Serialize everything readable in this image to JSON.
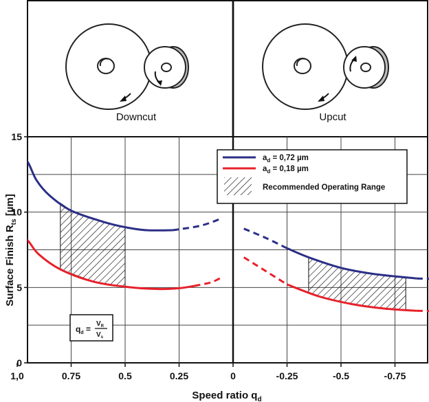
{
  "chart_data": {
    "type": "line",
    "xlabel": "Speed ratio q",
    "xlabel_sub": "d",
    "ylabel": "Surface Finish R",
    "ylabel_sub": "ts",
    "ylabel_unit": " [µm]",
    "ylim": [
      0,
      15
    ],
    "yticks": [
      "0",
      "5",
      "10",
      "15"
    ],
    "xticks": [
      {
        "value": 1.0,
        "label": "1,0"
      },
      {
        "value": 0.75,
        "label": "0.75"
      },
      {
        "value": 0.5,
        "label": "0.5"
      },
      {
        "value": 0.25,
        "label": "0.25"
      },
      {
        "value": 0,
        "label": "0"
      },
      {
        "value": -0.25,
        "label": "-0.25"
      },
      {
        "value": -0.5,
        "label": "-0.5"
      },
      {
        "value": -0.75,
        "label": "-0.75"
      },
      {
        "value": -1.0,
        "label": "-1,0"
      }
    ],
    "xlim": [
      1.25,
      -1.2
    ],
    "grid": true,
    "legend_position": "top-right",
    "panels": [
      {
        "key": "downcut",
        "label": "Downcut"
      },
      {
        "key": "upcut",
        "label": "Upcut"
      }
    ],
    "legend": {
      "entries": [
        {
          "symbol": "a",
          "sub": "d",
          "text": " = 0,72 µm",
          "series": "blue"
        },
        {
          "symbol": "a",
          "sub": "d",
          "text": " = 0,18 µm",
          "series": "red"
        },
        {
          "text": "Recommended Operating Range",
          "hatch": true
        }
      ]
    },
    "formula": {
      "lhs": "q",
      "lhs_sub": "d",
      "num": "V",
      "num_sub": "R",
      "den": "V",
      "den_sub": "s"
    },
    "series": [
      {
        "key": "blue",
        "name": "a_d = 0,72 µm",
        "color": "#2b2f86",
        "segments": [
          {
            "dashed": true,
            "points": [
              [
                1.23,
                12.9
              ],
              [
                1.12,
                13.7
              ],
              [
                1.03,
                14.3
              ]
            ]
          },
          {
            "dashed": false,
            "points": [
              [
                1.0,
                14.2
              ],
              [
                0.95,
                13.3
              ],
              [
                0.91,
                12.1
              ],
              [
                0.85,
                11.1
              ],
              [
                0.75,
                10.1
              ],
              [
                0.6,
                9.35
              ],
              [
                0.5,
                9.0
              ],
              [
                0.4,
                8.8
              ],
              [
                0.28,
                8.8
              ]
            ]
          },
          {
            "dashed": true,
            "points": [
              [
                0.28,
                8.8
              ],
              [
                0.15,
                9.1
              ],
              [
                0.05,
                9.6
              ]
            ]
          },
          {
            "dashed": true,
            "points": [
              [
                -0.05,
                8.9
              ],
              [
                -0.15,
                8.3
              ],
              [
                -0.25,
                7.6
              ]
            ]
          },
          {
            "dashed": false,
            "points": [
              [
                -0.25,
                7.6
              ],
              [
                -0.35,
                7.0
              ],
              [
                -0.5,
                6.3
              ],
              [
                -0.65,
                5.9
              ],
              [
                -0.85,
                5.6
              ]
            ]
          },
          {
            "dashed": true,
            "points": [
              [
                -0.85,
                5.6
              ],
              [
                -1.0,
                5.55
              ],
              [
                -1.18,
                5.55
              ]
            ]
          }
        ]
      },
      {
        "key": "red",
        "name": "a_d = 0,18 µm",
        "color": "#e8202a",
        "segments": [
          {
            "dashed": true,
            "points": [
              [
                1.22,
                7.4
              ],
              [
                1.1,
                8.3
              ],
              [
                1.03,
                8.8
              ]
            ]
          },
          {
            "dashed": false,
            "points": [
              [
                1.0,
                8.7
              ],
              [
                0.95,
                8.1
              ],
              [
                0.9,
                7.2
              ],
              [
                0.8,
                6.2
              ],
              [
                0.65,
                5.4
              ],
              [
                0.5,
                5.05
              ],
              [
                0.35,
                4.9
              ],
              [
                0.25,
                4.95
              ],
              [
                0.18,
                5.1
              ]
            ]
          },
          {
            "dashed": true,
            "points": [
              [
                0.18,
                5.1
              ],
              [
                0.1,
                5.35
              ],
              [
                0.05,
                5.7
              ]
            ]
          },
          {
            "dashed": true,
            "points": [
              [
                -0.05,
                7.0
              ],
              [
                -0.15,
                6.1
              ],
              [
                -0.25,
                5.2
              ]
            ]
          },
          {
            "dashed": false,
            "points": [
              [
                -0.25,
                5.2
              ],
              [
                -0.4,
                4.4
              ],
              [
                -0.55,
                3.9
              ],
              [
                -0.7,
                3.6
              ],
              [
                -0.85,
                3.45
              ]
            ]
          },
          {
            "dashed": true,
            "points": [
              [
                -0.85,
                3.45
              ],
              [
                -1.0,
                3.45
              ],
              [
                -1.18,
                3.65
              ]
            ]
          }
        ]
      }
    ],
    "recommended_ranges": [
      {
        "x0": 0.8,
        "x1": 0.5,
        "lower": "red",
        "upper": "blue"
      },
      {
        "x0": -0.35,
        "x1": -0.8,
        "lower": "red",
        "upper": "blue"
      }
    ]
  }
}
